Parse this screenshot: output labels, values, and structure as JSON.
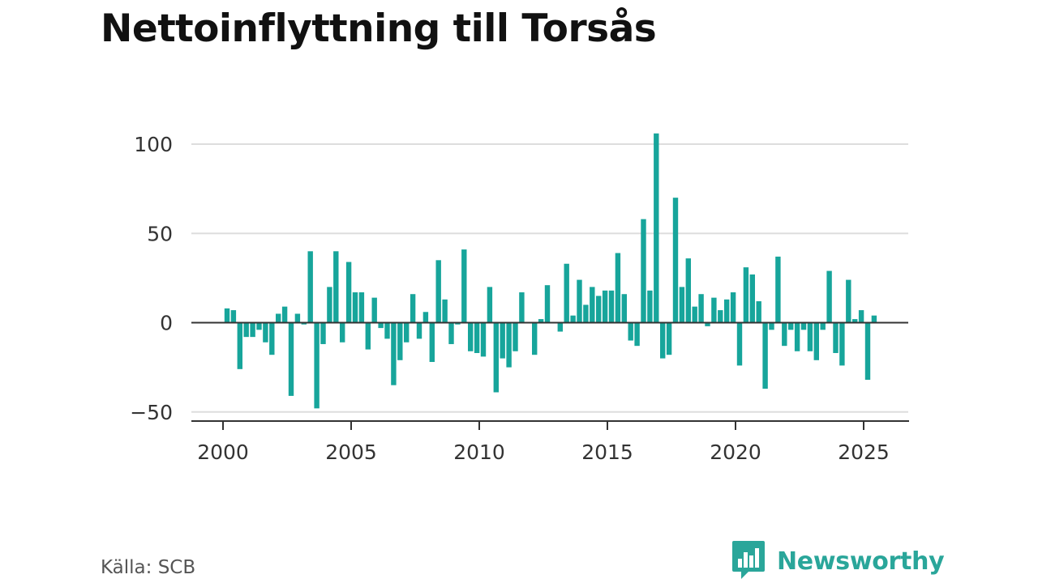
{
  "title": "Nettoinflyttning till Torsås",
  "source": "Källa: SCB",
  "brand": {
    "name": "Newsworthy",
    "color": "#2aa69a",
    "icon": "newsworthy-logo-icon"
  },
  "chart_data": {
    "type": "bar",
    "title": "Nettoinflyttning till Torsås",
    "xlabel": "",
    "ylabel": "",
    "bar_color": "#17a59b",
    "grid": true,
    "ylim": [
      -55,
      110
    ],
    "yticks": [
      -50,
      0,
      50,
      100
    ],
    "ytick_labels": [
      "−50",
      "0",
      "50",
      "100"
    ],
    "xlim": [
      1999.25,
      2027.0
    ],
    "xticks": [
      2000,
      2005,
      2010,
      2015,
      2020,
      2025
    ],
    "xtick_labels": [
      "2000",
      "2005",
      "2010",
      "2015",
      "2020",
      "2025"
    ],
    "period": "quarterly",
    "x": [
      "2000-Q1",
      "2000-Q2",
      "2000-Q3",
      "2000-Q4",
      "2001-Q1",
      "2001-Q2",
      "2001-Q3",
      "2001-Q4",
      "2002-Q1",
      "2002-Q2",
      "2002-Q3",
      "2002-Q4",
      "2003-Q1",
      "2003-Q2",
      "2003-Q3",
      "2003-Q4",
      "2004-Q1",
      "2004-Q2",
      "2004-Q3",
      "2004-Q4",
      "2005-Q1",
      "2005-Q2",
      "2005-Q3",
      "2005-Q4",
      "2006-Q1",
      "2006-Q2",
      "2006-Q3",
      "2006-Q4",
      "2007-Q1",
      "2007-Q2",
      "2007-Q3",
      "2007-Q4",
      "2008-Q1",
      "2008-Q2",
      "2008-Q3",
      "2008-Q4",
      "2009-Q1",
      "2009-Q2",
      "2009-Q3",
      "2009-Q4",
      "2010-Q1",
      "2010-Q2",
      "2010-Q3",
      "2010-Q4",
      "2011-Q1",
      "2011-Q2",
      "2011-Q3",
      "2011-Q4",
      "2012-Q1",
      "2012-Q2",
      "2012-Q3",
      "2012-Q4",
      "2013-Q1",
      "2013-Q2",
      "2013-Q3",
      "2013-Q4",
      "2014-Q1",
      "2014-Q2",
      "2014-Q3",
      "2014-Q4",
      "2015-Q1",
      "2015-Q2",
      "2015-Q3",
      "2015-Q4",
      "2016-Q1",
      "2016-Q2",
      "2016-Q3",
      "2016-Q4",
      "2017-Q1",
      "2017-Q2",
      "2017-Q3",
      "2017-Q4",
      "2018-Q1",
      "2018-Q2",
      "2018-Q3",
      "2018-Q4",
      "2019-Q1",
      "2019-Q2",
      "2019-Q3",
      "2019-Q4",
      "2020-Q1",
      "2020-Q2",
      "2020-Q3",
      "2020-Q4",
      "2021-Q1",
      "2021-Q2",
      "2021-Q3",
      "2021-Q4",
      "2022-Q1",
      "2022-Q2",
      "2022-Q3",
      "2022-Q4",
      "2023-Q1",
      "2023-Q2",
      "2023-Q3",
      "2023-Q4",
      "2024-Q1",
      "2024-Q2",
      "2024-Q3",
      "2024-Q4",
      "2025-Q1",
      "2025-Q2"
    ],
    "values": [
      8,
      7,
      -26,
      -8,
      -8,
      -4,
      -11,
      -18,
      5,
      9,
      -41,
      5,
      -1,
      40,
      -48,
      -12,
      20,
      40,
      -11,
      34,
      17,
      17,
      -15,
      14,
      -3,
      -9,
      -35,
      -21,
      -11,
      16,
      -9,
      6,
      -22,
      35,
      13,
      -12,
      -1,
      41,
      -16,
      -17,
      -19,
      20,
      -39,
      -20,
      -25,
      -16,
      17,
      0,
      -18,
      2,
      21,
      0,
      -5,
      33,
      4,
      24,
      10,
      20,
      15,
      18,
      18,
      39,
      16,
      -10,
      -13,
      58,
      18,
      106,
      -20,
      -18,
      70,
      20,
      36,
      9,
      16,
      -2,
      14,
      7,
      13,
      17,
      -24,
      31,
      27,
      12,
      -37,
      -4,
      37,
      -13,
      -4,
      -16,
      -4,
      -16,
      -21,
      -4,
      29,
      -17,
      -24,
      24,
      2,
      7,
      -32,
      4
    ]
  }
}
